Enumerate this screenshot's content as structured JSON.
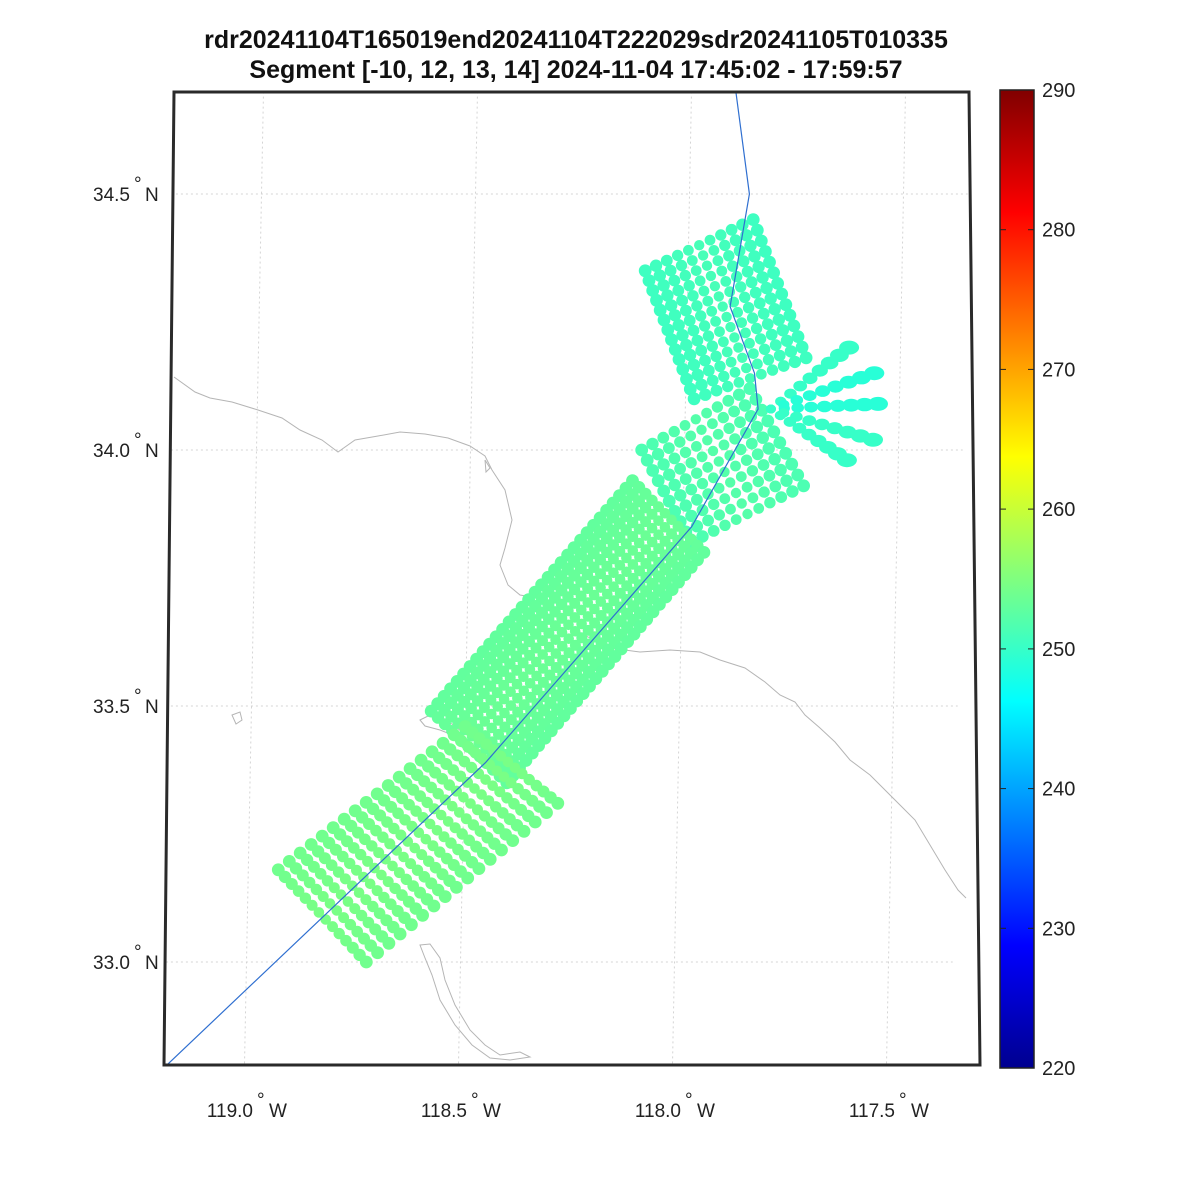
{
  "title": {
    "line1": "rdr20241104T165019end20241104T222029sdr20241105T010335",
    "line2": "Segment [-10, 12, 13, 14] 2024-11-04 17:45:02 - 17:59:57"
  },
  "axes": {
    "lat_ticks": [
      {
        "value": 34.5,
        "label": "34.5",
        "suffix": "N"
      },
      {
        "value": 34.0,
        "label": "34.0",
        "suffix": "N"
      },
      {
        "value": 33.5,
        "label": "33.5",
        "suffix": "N"
      },
      {
        "value": 33.0,
        "label": "33.0",
        "suffix": "N"
      }
    ],
    "lon_ticks": [
      {
        "value": -119.0,
        "label": "119.0",
        "suffix": "W"
      },
      {
        "value": -118.5,
        "label": "118.5",
        "suffix": "W"
      },
      {
        "value": -118.0,
        "label": "118.0",
        "suffix": "W"
      },
      {
        "value": -117.5,
        "label": "117.5",
        "suffix": "W"
      }
    ],
    "lat_range": [
      32.8,
      34.7
    ],
    "lon_range": [
      -119.2,
      -117.35
    ],
    "grid": true
  },
  "colorbar": {
    "colormap": "jet",
    "min": 220,
    "max": 290,
    "ticks": [
      {
        "value": 290,
        "label": "290"
      },
      {
        "value": 280,
        "label": "280"
      },
      {
        "value": 270,
        "label": "270"
      },
      {
        "value": 260,
        "label": "260"
      },
      {
        "value": 250,
        "label": "250"
      },
      {
        "value": 240,
        "label": "240"
      },
      {
        "value": 230,
        "label": "230"
      },
      {
        "value": 220,
        "label": "220"
      }
    ]
  },
  "colors": {
    "flight_track": "#2f6fd0",
    "coastline": "#b5b5b5",
    "frame": "#2a2a2a",
    "grid": "#d4d4d4"
  },
  "flight_track": [
    [
      -117.9,
      34.72
    ],
    [
      -117.86,
      34.5
    ],
    [
      -117.9,
      34.28
    ],
    [
      -117.84,
      34.15
    ],
    [
      -117.83,
      34.08
    ],
    [
      -117.98,
      33.85
    ],
    [
      -118.45,
      33.39
    ],
    [
      -119.18,
      32.8
    ]
  ],
  "swaths": [
    {
      "corners": [
        [
          -118.1,
          34.35
        ],
        [
          -117.85,
          34.45
        ],
        [
          -117.72,
          34.18
        ],
        [
          -117.98,
          34.1
        ]
      ],
      "rows": 14,
      "cols": 11,
      "value": 250.5
    },
    {
      "corners": [
        [
          -118.1,
          34.0
        ],
        [
          -117.85,
          34.12
        ],
        [
          -117.72,
          33.93
        ],
        [
          -117.98,
          33.82
        ]
      ],
      "rows": 10,
      "cols": 11,
      "value": 251.5
    },
    {
      "corners": [
        [
          -118.12,
          33.94
        ],
        [
          -117.95,
          33.8
        ],
        [
          -118.4,
          33.35
        ],
        [
          -118.58,
          33.49
        ]
      ],
      "rows": 32,
      "cols": 12,
      "value": 253
    },
    {
      "corners": [
        [
          -118.5,
          33.46
        ],
        [
          -118.28,
          33.31
        ],
        [
          -118.72,
          33.0
        ],
        [
          -118.93,
          33.18
        ]
      ],
      "rows": 18,
      "cols": 14,
      "value": 254
    }
  ],
  "fan": {
    "origin": [
      -117.8,
      34.08
    ],
    "rays": [
      {
        "end": [
          -117.62,
          34.2
        ],
        "value": 250
      },
      {
        "end": [
          -117.56,
          34.15
        ],
        "value": 249
      },
      {
        "end": [
          -117.55,
          34.09
        ],
        "value": 249
      },
      {
        "end": [
          -117.56,
          34.02
        ],
        "value": 250
      },
      {
        "end": [
          -117.62,
          33.98
        ],
        "value": 250
      }
    ]
  }
}
